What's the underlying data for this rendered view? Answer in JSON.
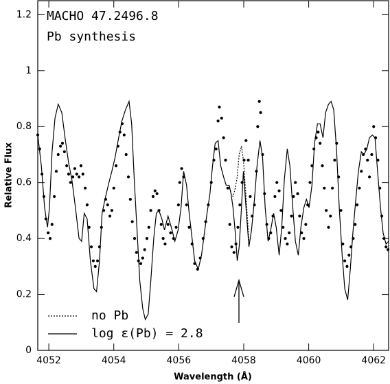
{
  "chart_data": {
    "type": "line",
    "annotations": [
      "MACHO 47.2496.8",
      "Pb synthesis"
    ],
    "x_label": "Wavelength (Å)",
    "y_label": "Relative Flux",
    "xlim": [
      4051.66,
      4062.46
    ],
    "ylim": [
      0,
      1.25
    ],
    "xticks": [
      4052,
      4054,
      4056,
      4058,
      4060,
      4062
    ],
    "yticks": [
      0,
      0.2,
      0.4,
      0.6,
      0.8,
      1,
      1.2
    ],
    "color": "#000000",
    "legend": "lower left",
    "series": [
      {
        "name": "no Pb",
        "type": "line",
        "style": "dotted",
        "x": [
          4057.55,
          4057.61,
          4057.67,
          4057.74,
          4057.8,
          4057.86,
          4057.93,
          4057.99,
          4058.07,
          4058.16
        ],
        "values": [
          0.59,
          0.56,
          0.55,
          0.58,
          0.62,
          0.7,
          0.73,
          0.68,
          0.55,
          0.39
        ]
      },
      {
        "name": "log ε(Pb) = 2.8",
        "type": "line",
        "style": "solid",
        "x": [
          4051.66,
          4051.77,
          4051.87,
          4051.96,
          4052.02,
          4052.1,
          4052.19,
          4052.29,
          4052.4,
          4052.5,
          4052.61,
          4052.71,
          4052.82,
          4052.93,
          4053.01,
          4053.09,
          4053.18,
          4053.28,
          4053.39,
          4053.47,
          4053.56,
          4053.64,
          4053.73,
          4053.83,
          4053.94,
          4054.04,
          4054.15,
          4054.25,
          4054.36,
          4054.47,
          4054.55,
          4054.63,
          4054.72,
          4054.8,
          4054.89,
          4054.97,
          4055.06,
          4055.14,
          4055.23,
          4055.31,
          4055.39,
          4055.48,
          4055.56,
          4055.67,
          4055.77,
          4055.88,
          4055.98,
          4056.07,
          4056.15,
          4056.24,
          4056.32,
          4056.41,
          4056.49,
          4056.6,
          4056.7,
          4056.79,
          4056.87,
          4056.96,
          4057.04,
          4057.12,
          4057.21,
          4057.29,
          4057.38,
          4057.46,
          4057.55,
          4057.61,
          4057.67,
          4057.74,
          4057.8,
          4057.86,
          4057.93,
          4057.99,
          4058.07,
          4058.16,
          4058.24,
          4058.33,
          4058.41,
          4058.5,
          4058.58,
          4058.66,
          4058.75,
          4058.83,
          4058.92,
          4059.0,
          4059.09,
          4059.17,
          4059.25,
          4059.34,
          4059.42,
          4059.51,
          4059.59,
          4059.68,
          4059.76,
          4059.85,
          4059.93,
          4060.01,
          4060.1,
          4060.18,
          4060.27,
          4060.35,
          4060.44,
          4060.52,
          4060.61,
          4060.69,
          4060.77,
          4060.86,
          4060.94,
          4061.03,
          4061.11,
          4061.2,
          4061.28,
          4061.36,
          4061.45,
          4061.53,
          4061.62,
          4061.7,
          4061.79,
          4061.87,
          4061.96,
          4062.04,
          4062.12,
          4062.21,
          4062.29,
          4062.38,
          4062.46
        ],
        "values": [
          0.77,
          0.66,
          0.51,
          0.44,
          0.51,
          0.71,
          0.83,
          0.88,
          0.85,
          0.76,
          0.67,
          0.61,
          0.51,
          0.4,
          0.39,
          0.49,
          0.47,
          0.32,
          0.22,
          0.21,
          0.32,
          0.49,
          0.54,
          0.59,
          0.64,
          0.69,
          0.76,
          0.82,
          0.86,
          0.89,
          0.81,
          0.61,
          0.42,
          0.25,
          0.15,
          0.11,
          0.13,
          0.25,
          0.4,
          0.49,
          0.5,
          0.47,
          0.43,
          0.48,
          0.44,
          0.39,
          0.43,
          0.51,
          0.64,
          0.59,
          0.49,
          0.4,
          0.32,
          0.29,
          0.34,
          0.42,
          0.49,
          0.56,
          0.66,
          0.74,
          0.75,
          0.66,
          0.62,
          0.59,
          0.59,
          0.56,
          0.51,
          0.42,
          0.32,
          0.37,
          0.51,
          0.64,
          0.51,
          0.37,
          0.43,
          0.54,
          0.66,
          0.75,
          0.69,
          0.51,
          0.39,
          0.43,
          0.49,
          0.44,
          0.34,
          0.44,
          0.61,
          0.72,
          0.66,
          0.51,
          0.39,
          0.34,
          0.44,
          0.51,
          0.54,
          0.51,
          0.59,
          0.74,
          0.81,
          0.81,
          0.76,
          0.85,
          0.88,
          0.89,
          0.86,
          0.71,
          0.51,
          0.34,
          0.22,
          0.18,
          0.29,
          0.42,
          0.54,
          0.64,
          0.71,
          0.7,
          0.72,
          0.76,
          0.77,
          0.76,
          0.64,
          0.51,
          0.42,
          0.38,
          0.39
        ]
      },
      {
        "type": "scatter",
        "style": "points",
        "x": [
          4051.66,
          4051.72,
          4051.79,
          4051.85,
          4051.91,
          4051.98,
          4052.04,
          4052.1,
          4052.17,
          4052.23,
          4052.29,
          4052.36,
          4052.42,
          4052.48,
          4052.55,
          4052.61,
          4052.67,
          4052.74,
          4052.8,
          4052.86,
          4052.93,
          4052.99,
          4053.05,
          4053.12,
          4053.18,
          4053.24,
          4053.31,
          4053.37,
          4053.43,
          4053.5,
          4053.56,
          4053.62,
          4053.69,
          4053.75,
          4053.81,
          4053.88,
          4053.94,
          4054.0,
          4054.07,
          4054.13,
          4054.19,
          4054.26,
          4054.32,
          4054.38,
          4054.45,
          4054.51,
          4054.57,
          4054.64,
          4054.7,
          4054.76,
          4054.83,
          4054.89,
          4054.95,
          4055.02,
          4055.08,
          4055.14,
          4055.21,
          4055.27,
          4055.33,
          4055.39,
          4055.46,
          4055.52,
          4055.58,
          4055.67,
          4055.75,
          4055.84,
          4055.92,
          4055.99,
          4056.03,
          4056.09,
          4056.15,
          4056.24,
          4056.32,
          4056.41,
          4056.49,
          4056.58,
          4056.66,
          4056.75,
          4056.83,
          4056.91,
          4057.0,
          4057.08,
          4057.15,
          4057.21,
          4057.25,
          4057.32,
          4057.38,
          4057.44,
          4057.51,
          4057.57,
          4057.63,
          4057.7,
          4057.76,
          4057.82,
          4057.88,
          4057.95,
          4058.01,
          4058.07,
          4058.14,
          4058.2,
          4058.26,
          4058.33,
          4058.39,
          4058.43,
          4058.48,
          4058.52,
          4058.58,
          4058.64,
          4058.71,
          4058.77,
          4058.83,
          4058.9,
          4058.96,
          4059.02,
          4059.09,
          4059.15,
          4059.21,
          4059.28,
          4059.34,
          4059.4,
          4059.47,
          4059.53,
          4059.59,
          4059.66,
          4059.72,
          4059.78,
          4059.85,
          4059.91,
          4059.97,
          4060.04,
          4060.1,
          4060.16,
          4060.23,
          4060.29,
          4060.35,
          4060.42,
          4060.48,
          4060.54,
          4060.61,
          4060.67,
          4060.73,
          4060.8,
          4060.86,
          4060.92,
          4060.99,
          4061.05,
          4061.11,
          4061.18,
          4061.24,
          4061.3,
          4061.37,
          4061.43,
          4061.49,
          4061.56,
          4061.62,
          4061.68,
          4061.75,
          4061.81,
          4061.87,
          4061.94,
          4062.0,
          4062.06,
          4062.13,
          4062.19,
          4062.25,
          4062.32,
          4062.38,
          4062.44
        ],
        "values": [
          0.77,
          0.72,
          0.63,
          0.55,
          0.47,
          0.42,
          0.4,
          0.45,
          0.55,
          0.64,
          0.7,
          0.73,
          0.74,
          0.71,
          0.66,
          0.63,
          0.6,
          0.62,
          0.65,
          0.63,
          0.62,
          0.66,
          0.63,
          0.58,
          0.52,
          0.44,
          0.37,
          0.32,
          0.3,
          0.32,
          0.37,
          0.44,
          0.5,
          0.54,
          0.52,
          0.48,
          0.5,
          0.58,
          0.66,
          0.73,
          0.78,
          0.81,
          0.77,
          0.7,
          0.62,
          0.54,
          0.46,
          0.4,
          0.35,
          0.32,
          0.31,
          0.33,
          0.36,
          0.4,
          0.44,
          0.5,
          0.55,
          0.57,
          0.56,
          0.5,
          0.45,
          0.4,
          0.38,
          0.45,
          0.42,
          0.4,
          0.44,
          0.52,
          0.6,
          0.65,
          0.62,
          0.52,
          0.44,
          0.38,
          0.31,
          0.29,
          0.33,
          0.4,
          0.46,
          0.52,
          0.6,
          0.68,
          0.72,
          0.82,
          0.87,
          0.83,
          0.76,
          0.68,
          0.58,
          0.45,
          0.37,
          0.35,
          0.38,
          0.44,
          0.52,
          0.6,
          0.68,
          0.75,
          0.68,
          0.55,
          0.48,
          0.52,
          0.64,
          0.8,
          0.89,
          0.85,
          0.7,
          0.56,
          0.45,
          0.4,
          0.42,
          0.48,
          0.55,
          0.6,
          0.57,
          0.5,
          0.44,
          0.4,
          0.38,
          0.42,
          0.48,
          0.55,
          0.6,
          0.56,
          0.48,
          0.42,
          0.4,
          0.45,
          0.52,
          0.6,
          0.66,
          0.72,
          0.76,
          0.78,
          0.74,
          0.66,
          0.58,
          0.5,
          0.44,
          0.48,
          0.58,
          0.68,
          0.74,
          0.62,
          0.5,
          0.38,
          0.32,
          0.3,
          0.34,
          0.37,
          0.4,
          0.45,
          0.52,
          0.58,
          0.64,
          0.7,
          0.72,
          0.68,
          0.62,
          0.7,
          0.8,
          0.76,
          0.68,
          0.58,
          0.48,
          0.4,
          0.37,
          0.36
        ]
      }
    ]
  }
}
